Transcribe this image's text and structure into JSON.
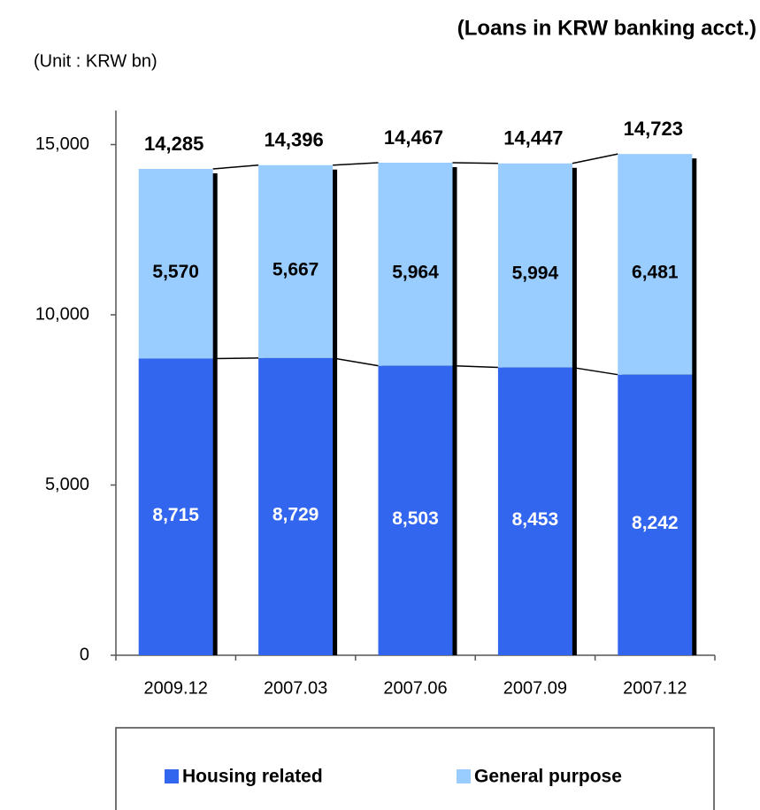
{
  "chart_data": {
    "type": "stacked_bar",
    "title": "(Loans in KRW banking acct.)",
    "subtitle": "(Unit : KRW bn)",
    "categories": [
      "2009.12",
      "2007.03",
      "2007.06",
      "2007.09",
      "2007.12"
    ],
    "series": [
      {
        "name": "Housing related",
        "color": "#3366ee",
        "values": [
          8715,
          8729,
          8503,
          8453,
          8242
        ],
        "value_labels": [
          "8,715",
          "8,729",
          "8,503",
          "8,453",
          "8,242"
        ]
      },
      {
        "name": "General purpose",
        "color": "#99ccff",
        "values": [
          5570,
          5667,
          5964,
          5994,
          6481
        ],
        "value_labels": [
          "5,570",
          "5,667",
          "5,964",
          "5,994",
          "6,481"
        ]
      }
    ],
    "totals": {
      "values": [
        14285,
        14396,
        14467,
        14447,
        14723
      ],
      "value_labels": [
        "14,285",
        "14,396",
        "14,467",
        "14,447",
        "14,723"
      ]
    },
    "ylim": [
      0,
      16000
    ],
    "yticks": [
      0,
      {
        "value": 5000,
        "label": "5,000"
      },
      {
        "value": 10000,
        "label": "10,000"
      },
      {
        "value": 15000,
        "label": "15,000"
      }
    ],
    "legend": "bottom"
  }
}
